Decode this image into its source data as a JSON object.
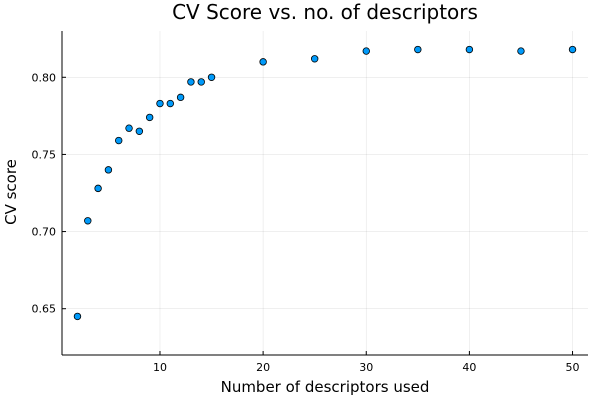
{
  "chart_data": {
    "type": "scatter",
    "title": "CV Score vs. no. of descriptors",
    "xlabel": "Number of descriptors used",
    "ylabel": "CV score",
    "xlim": [
      0.5,
      51.5
    ],
    "ylim": [
      0.62,
      0.83
    ],
    "xticks": [
      10,
      20,
      30,
      40,
      50
    ],
    "xtick_labels": [
      "10",
      "20",
      "30",
      "40",
      "50"
    ],
    "yticks": [
      0.65,
      0.7,
      0.75,
      0.8
    ],
    "ytick_labels": [
      "0.65",
      "0.70",
      "0.75",
      "0.80"
    ],
    "grid": true,
    "legend": "none",
    "marker_color": "#009AFA",
    "series": [
      {
        "x": [
          2,
          3,
          4,
          5,
          6,
          7,
          8,
          9,
          10,
          11,
          12,
          13,
          14,
          15,
          20,
          25,
          30,
          35,
          40,
          45,
          50
        ],
        "y": [
          0.645,
          0.707,
          0.728,
          0.74,
          0.759,
          0.767,
          0.765,
          0.774,
          0.783,
          0.783,
          0.787,
          0.797,
          0.797,
          0.8,
          0.81,
          0.812,
          0.817,
          0.818,
          0.818,
          0.817,
          0.818
        ]
      }
    ]
  }
}
